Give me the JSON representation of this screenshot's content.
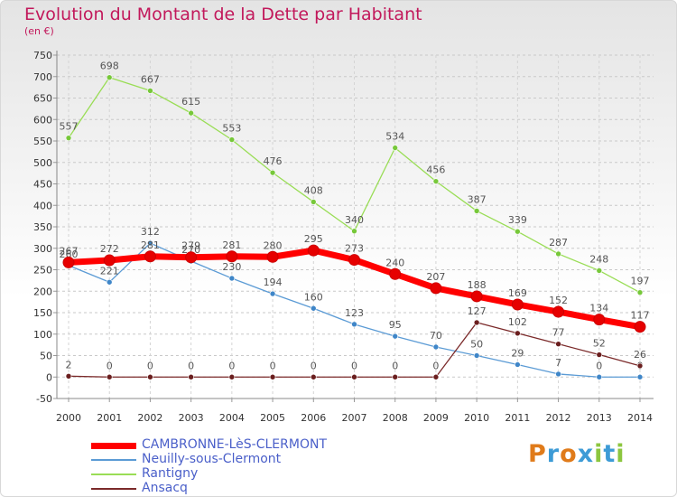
{
  "chart_data": {
    "type": "line",
    "title": "Evolution du Montant de la Dette par Habitant",
    "subtitle": "(en €)",
    "ylim": [
      -50,
      750
    ],
    "ytick_step": 50,
    "grid": true,
    "x": [
      "2000",
      "2001",
      "2002",
      "2003",
      "2004",
      "2005",
      "2006",
      "2007",
      "2008",
      "2009",
      "2010",
      "2011",
      "2012",
      "2013",
      "2014"
    ],
    "series": [
      {
        "name": "CAMBRONNE-LèS-CLERMONT",
        "color": "#ff0000",
        "marker": "#e60000",
        "values": [
          267,
          272,
          281,
          279,
          281,
          280,
          295,
          273,
          240,
          207,
          188,
          169,
          152,
          134,
          117
        ]
      },
      {
        "name": "Neuilly-sous-Clermont",
        "color": "#5b9bd5",
        "marker": "#3f86c8",
        "values": [
          260,
          221,
          312,
          270,
          230,
          194,
          160,
          123,
          95,
          70,
          50,
          29,
          7,
          0,
          0
        ]
      },
      {
        "name": "Rantigny",
        "color": "#99dd55",
        "marker": "#77c83a",
        "values": [
          557,
          698,
          667,
          615,
          553,
          476,
          408,
          340,
          534,
          456,
          387,
          339,
          287,
          248,
          197
        ]
      },
      {
        "name": "Ansacq",
        "color": "#7b2a2a",
        "marker": "#6a1e1e",
        "values": [
          2,
          0,
          0,
          0,
          0,
          0,
          0,
          0,
          0,
          0,
          127,
          102,
          77,
          52,
          26
        ]
      }
    ]
  },
  "logo": {
    "text": "Proxiti",
    "letters": [
      {
        "ch": "P",
        "color": "#e07b1a"
      },
      {
        "ch": "r",
        "color": "#3d9bd6"
      },
      {
        "ch": "o",
        "color": "#e07b1a"
      },
      {
        "ch": "x",
        "color": "#3d9bd6"
      },
      {
        "ch": "i",
        "color": "#8cc63f"
      },
      {
        "ch": "t",
        "color": "#3d9bd6"
      },
      {
        "ch": "i",
        "color": "#8cc63f"
      }
    ]
  }
}
